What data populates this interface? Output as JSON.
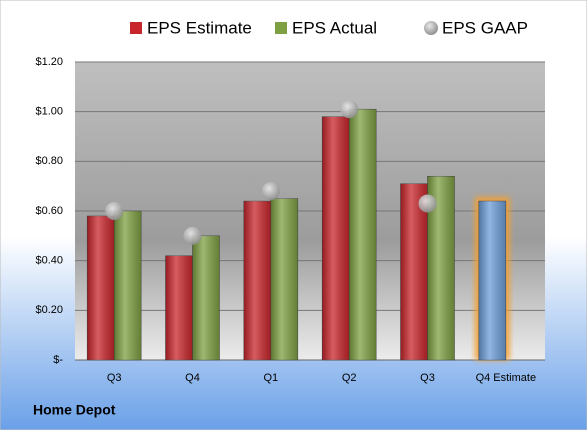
{
  "chart_data": {
    "type": "bar",
    "categories": [
      "Q3",
      "Q4",
      "Q1",
      "Q2",
      "Q3",
      "Q4 Estimate"
    ],
    "series": [
      {
        "name": "EPS Estimate",
        "color": "#c8262c",
        "point_colors": [
          "#c8262c",
          "#c8262c",
          "#c8262c",
          "#c8262c",
          "#c8262c",
          "#6e9ed9"
        ],
        "values": [
          0.58,
          0.42,
          0.64,
          0.98,
          0.71,
          0.64
        ]
      },
      {
        "name": "EPS Actual",
        "color": "#7ea043",
        "values": [
          0.6,
          0.5,
          0.65,
          1.01,
          0.74,
          null
        ]
      },
      {
        "name": "EPS GAAP",
        "color": "#a6a6a6",
        "marker": "circle",
        "values": [
          0.6,
          0.5,
          0.68,
          1.01,
          0.63,
          null
        ]
      }
    ],
    "ylim": [
      0,
      1.2
    ],
    "yticks": [
      {
        "value": 0,
        "label": "$-"
      },
      {
        "value": 0.2,
        "label": "$0.20"
      },
      {
        "value": 0.4,
        "label": "$0.40"
      },
      {
        "value": 0.6,
        "label": "$0.60"
      },
      {
        "value": 0.8,
        "label": "$0.80"
      },
      {
        "value": 1.0,
        "label": "$1.00"
      },
      {
        "value": 1.2,
        "label": "$1.20"
      }
    ],
    "grid": true,
    "legend": "top",
    "footer": "Home Depot"
  }
}
